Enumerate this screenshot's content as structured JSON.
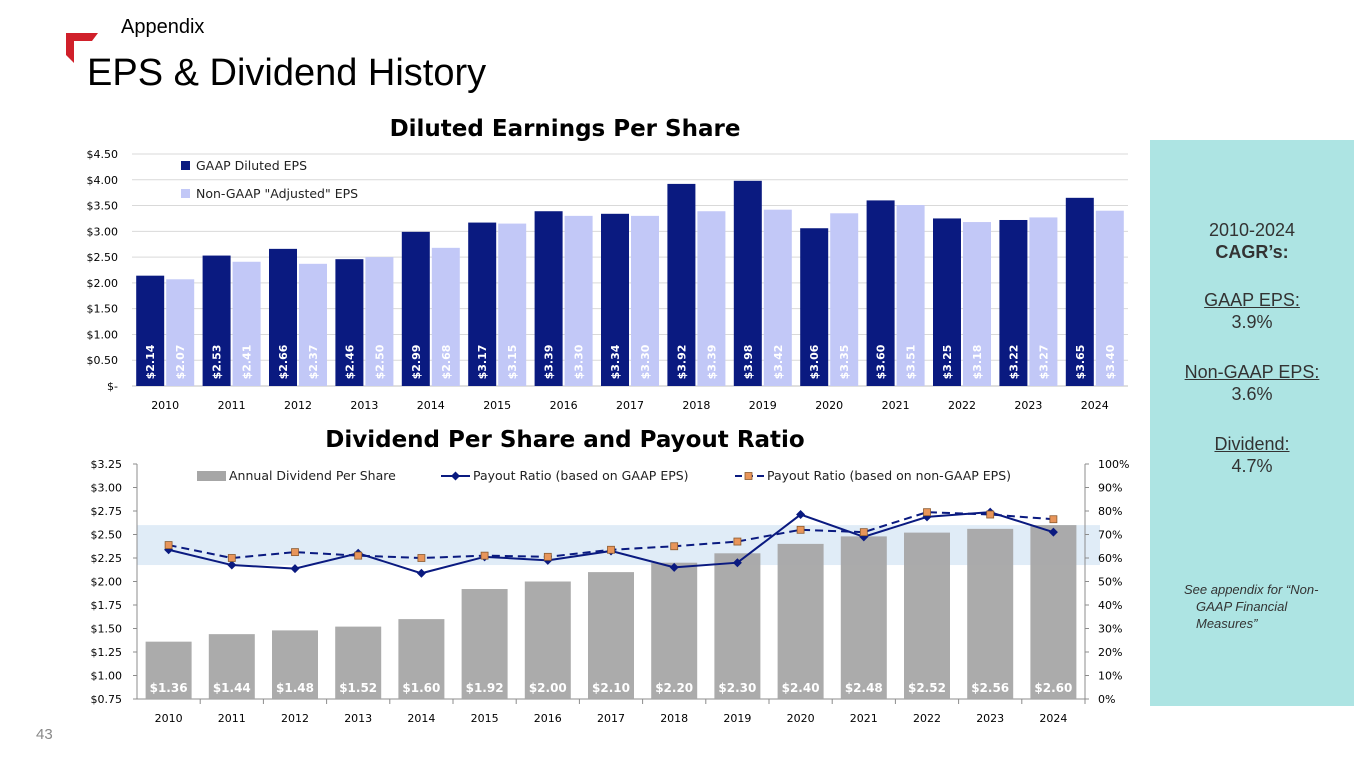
{
  "header": {
    "section": "Appendix",
    "title": "EPS & Dividend History"
  },
  "brand_color": "#d0202a",
  "page_number": "43",
  "sidebar": {
    "period": "2010-2024",
    "cagr_label": "CAGR’s:",
    "items": [
      {
        "label": "GAAP EPS:",
        "value": "3.9%"
      },
      {
        "label": "Non-GAAP EPS:",
        "value": "3.6%"
      },
      {
        "label": "Dividend:",
        "value": "4.7%"
      }
    ],
    "footnote_line1": "See appendix for “Non-",
    "footnote_line2": "GAAP Financial",
    "footnote_line3": "Measures”",
    "background": "#ade4e3"
  },
  "chart_data": [
    {
      "type": "bar",
      "title": "Diluted Earnings Per Share",
      "categories": [
        "2010",
        "2011",
        "2012",
        "2013",
        "2014",
        "2015",
        "2016",
        "2017",
        "2018",
        "2019",
        "2020",
        "2021",
        "2022",
        "2023",
        "2024"
      ],
      "yticks": [
        "$-",
        "$0.50",
        "$1.00",
        "$1.50",
        "$2.00",
        "$2.50",
        "$3.00",
        "$3.50",
        "$4.00",
        "$4.50"
      ],
      "ylim": [
        0,
        4.5
      ],
      "grid": true,
      "legend_position": "top-left",
      "series": [
        {
          "name": "GAAP Diluted EPS",
          "color": "#0a1a80",
          "values": [
            2.14,
            2.53,
            2.66,
            2.46,
            2.99,
            3.17,
            3.39,
            3.34,
            3.92,
            3.98,
            3.06,
            3.6,
            3.25,
            3.22,
            3.65
          ],
          "labels": [
            "$2.14",
            "$2.53",
            "$2.66",
            "$2.46",
            "$2.99",
            "$3.17",
            "$3.39",
            "$3.34",
            "$3.92",
            "$3.98",
            "$3.06",
            "$3.60",
            "$3.25",
            "$3.22",
            "$3.65"
          ]
        },
        {
          "name": "Non-GAAP \"Adjusted\" EPS",
          "color": "#c2c8f7",
          "values": [
            2.07,
            2.41,
            2.37,
            2.5,
            2.68,
            3.15,
            3.3,
            3.3,
            3.39,
            3.42,
            3.35,
            3.51,
            3.18,
            3.27,
            3.4
          ],
          "labels": [
            "$2.07",
            "$2.41",
            "$2.37",
            "$2.50",
            "$2.68",
            "$3.15",
            "$3.30",
            "$3.30",
            "$3.39",
            "$3.42",
            "$3.35",
            "$3.51",
            "$3.18",
            "$3.27",
            "$3.40"
          ]
        }
      ]
    },
    {
      "type": "bar",
      "title": "Dividend Per Share and Payout Ratio",
      "categories": [
        "2010",
        "2011",
        "2012",
        "2013",
        "2014",
        "2015",
        "2016",
        "2017",
        "2018",
        "2019",
        "2020",
        "2021",
        "2022",
        "2023",
        "2024"
      ],
      "yticks": [
        "$0.75",
        "$1.00",
        "$1.25",
        "$1.50",
        "$1.75",
        "$2.00",
        "$2.25",
        "$2.50",
        "$2.75",
        "$3.00",
        "$3.25"
      ],
      "ylim": [
        0.75,
        3.25
      ],
      "y2ticks": [
        "0%",
        "10%",
        "20%",
        "30%",
        "40%",
        "50%",
        "60%",
        "70%",
        "80%",
        "90%",
        "100%"
      ],
      "y2lim": [
        0,
        100
      ],
      "target_band": [
        57,
        74
      ],
      "legend_position": "top",
      "series": [
        {
          "name": "Annual Dividend Per Share",
          "type": "bar",
          "color": "#a6a6a6",
          "values": [
            1.36,
            1.44,
            1.48,
            1.52,
            1.6,
            1.92,
            2.0,
            2.1,
            2.2,
            2.3,
            2.4,
            2.48,
            2.52,
            2.56,
            2.6
          ],
          "labels": [
            "$1.36",
            "$1.44",
            "$1.48",
            "$1.52",
            "$1.60",
            "$1.92",
            "$2.00",
            "$2.10",
            "$2.20",
            "$2.30",
            "$2.40",
            "$2.48",
            "$2.52",
            "$2.56",
            "$2.60"
          ]
        },
        {
          "name": "Payout Ratio (based on GAAP EPS)",
          "type": "line",
          "axis": "right",
          "color": "#0a1a80",
          "values": [
            63.5,
            57,
            55.5,
            62,
            53.5,
            60.5,
            59,
            63,
            56,
            58,
            78.5,
            69,
            77.5,
            79.5,
            71
          ]
        },
        {
          "name": "Payout Ratio (based on non-GAAP EPS)",
          "type": "line",
          "axis": "right",
          "dashed": true,
          "color": "#0a1a80",
          "marker_color": "#e8955a",
          "values": [
            65.5,
            60,
            62.5,
            61,
            60,
            61,
            60.5,
            63.5,
            65,
            67,
            72,
            71,
            79.5,
            78.5,
            76.5
          ]
        }
      ]
    }
  ]
}
